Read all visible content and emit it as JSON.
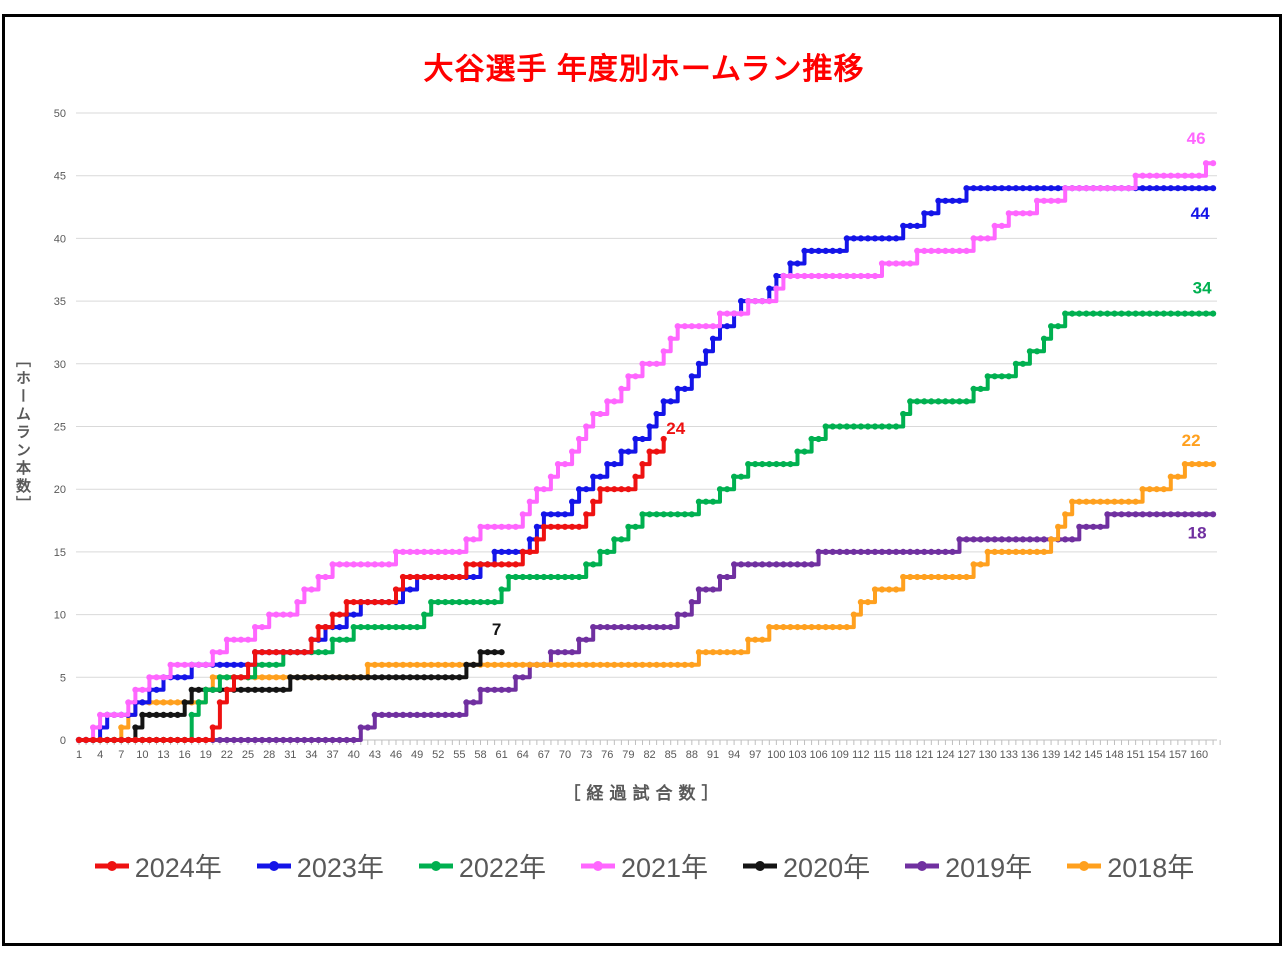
{
  "title": "大谷選手 年度別ホームラン推移",
  "y_axis": {
    "label": "［ホームラン本数］",
    "ticks": [
      0,
      5,
      10,
      15,
      20,
      25,
      30,
      35,
      40,
      45,
      50
    ],
    "min": 0,
    "max": 50
  },
  "x_axis": {
    "label": "［経過試合数］",
    "ticks": [
      1,
      4,
      7,
      10,
      13,
      16,
      19,
      22,
      25,
      28,
      31,
      34,
      37,
      40,
      43,
      46,
      49,
      52,
      55,
      58,
      61,
      64,
      67,
      70,
      73,
      76,
      79,
      82,
      85,
      88,
      91,
      94,
      97,
      100,
      103,
      106,
      109,
      112,
      115,
      118,
      121,
      124,
      127,
      130,
      133,
      136,
      139,
      142,
      145,
      148,
      151,
      154,
      157,
      160
    ],
    "min": 1,
    "max": 163
  },
  "colors": {
    "title": "#ff0000",
    "grid": "#d9d9d9",
    "axis": "#bfbfbf",
    "tick_text": "#595959",
    "legend_text": "#595959"
  },
  "chart_data": {
    "type": "line",
    "subtype": "cumulative-step-with-markers",
    "title": "大谷選手 年度別ホームラン推移",
    "xlabel": "［経過試合数］",
    "ylabel": "［ホームラン本数］",
    "xlim": [
      1,
      163
    ],
    "ylim": [
      0,
      50
    ],
    "grid": "horizontal",
    "legend_position": "bottom",
    "draw_order": [
      "2019年",
      "2018年",
      "2020年",
      "2022年",
      "2023年",
      "2021年",
      "2024年"
    ],
    "series": [
      {
        "name": "2024年",
        "color": "#ee1111",
        "total": 24,
        "end_game": 84,
        "end_label": "24",
        "label_dx": 12,
        "label_dy": -10,
        "hr_games": [
          20,
          21,
          21,
          22,
          23,
          25,
          26,
          34,
          35,
          37,
          39,
          46,
          47,
          56,
          64,
          66,
          67,
          73,
          74,
          75,
          80,
          81,
          82,
          84
        ]
      },
      {
        "name": "2023年",
        "color": "#1414e8",
        "total": 44,
        "end_game": 162,
        "end_label": "44",
        "label_dx": -13,
        "label_dy": 26,
        "hr_games": [
          4,
          5,
          9,
          11,
          13,
          17,
          26,
          34,
          36,
          39,
          41,
          47,
          49,
          58,
          60,
          65,
          66,
          67,
          71,
          72,
          74,
          76,
          78,
          80,
          82,
          83,
          84,
          86,
          88,
          89,
          90,
          91,
          92,
          94,
          95,
          99,
          100,
          102,
          104,
          110,
          118,
          121,
          123,
          127
        ]
      },
      {
        "name": "2022年",
        "color": "#00b050",
        "total": 34,
        "end_game": 162,
        "end_label": "34",
        "label_dx": -11,
        "label_dy": -25,
        "hr_games": [
          17,
          17,
          18,
          19,
          21,
          26,
          30,
          37,
          40,
          50,
          51,
          61,
          62,
          73,
          75,
          77,
          79,
          81,
          89,
          92,
          94,
          96,
          103,
          105,
          107,
          118,
          119,
          128,
          130,
          134,
          136,
          138,
          139,
          141
        ]
      },
      {
        "name": "2021年",
        "color": "#ff66ff",
        "total": 46,
        "end_game": 162,
        "end_label": "46",
        "label_dx": -17,
        "label_dy": -24,
        "hr_games": [
          3,
          4,
          8,
          9,
          11,
          14,
          20,
          22,
          26,
          28,
          32,
          33,
          35,
          37,
          46,
          56,
          58,
          64,
          65,
          66,
          68,
          69,
          71,
          72,
          73,
          74,
          76,
          78,
          79,
          81,
          84,
          85,
          86,
          92,
          96,
          100,
          101,
          115,
          120,
          128,
          131,
          133,
          137,
          141,
          151,
          161
        ]
      },
      {
        "name": "2020年",
        "color": "#141414",
        "total": 7,
        "end_game": 61,
        "end_label": "7",
        "label_dx": -5,
        "label_dy": -22,
        "hr_games": [
          9,
          10,
          16,
          17,
          31,
          56,
          58
        ]
      },
      {
        "name": "2019年",
        "color": "#7030a0",
        "total": 18,
        "end_game": 162,
        "end_label": "18",
        "label_dx": -16,
        "label_dy": 19,
        "hr_games": [
          41,
          43,
          56,
          58,
          63,
          65,
          68,
          72,
          74,
          86,
          88,
          89,
          92,
          94,
          106,
          126,
          143,
          147
        ]
      },
      {
        "name": "2018年",
        "color": "#ffa01e",
        "total": 22,
        "end_game": 162,
        "end_label": "22",
        "label_dx": -22,
        "label_dy": -23,
        "hr_games": [
          7,
          8,
          9,
          19,
          20,
          42,
          89,
          96,
          99,
          111,
          112,
          114,
          118,
          128,
          130,
          139,
          140,
          141,
          142,
          152,
          156,
          158
        ]
      }
    ]
  },
  "legend": {
    "items": [
      {
        "label": "2024年",
        "color": "#ee1111"
      },
      {
        "label": "2023年",
        "color": "#1414e8"
      },
      {
        "label": "2022年",
        "color": "#00b050"
      },
      {
        "label": "2021年",
        "color": "#ff66ff"
      },
      {
        "label": "2020年",
        "color": "#141414"
      },
      {
        "label": "2019年",
        "color": "#7030a0"
      },
      {
        "label": "2018年",
        "color": "#ffa01e"
      }
    ]
  }
}
